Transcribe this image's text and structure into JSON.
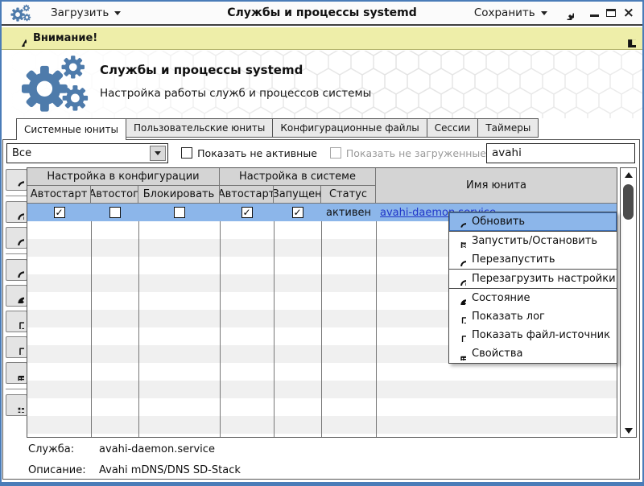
{
  "titlebar": {
    "load_label": "Загрузить",
    "title": "Службы и процессы systemd",
    "save_label": "Сохранить",
    "icons": [
      "gears-logo-icon",
      "gear-icon",
      "minimize-icon",
      "maximize-icon",
      "close-icon"
    ]
  },
  "warning_bar": {
    "text": "Внимание!",
    "icons": [
      "warning-triangle-icon",
      "save-floppy-icon"
    ]
  },
  "header": {
    "title": "Службы и процессы systemd",
    "subtitle": "Настройка работы служб и процессов системы"
  },
  "tabs": [
    {
      "label": "Системные юниты",
      "active": true
    },
    {
      "label": "Пользовательские юниты",
      "active": false
    },
    {
      "label": "Конфигурационные файлы",
      "active": false
    },
    {
      "label": "Сессии",
      "active": false
    },
    {
      "label": "Таймеры",
      "active": false
    }
  ],
  "filters": {
    "unit_type_value": "Все",
    "show_inactive_label": "Показать не активные",
    "show_inactive_checked": false,
    "show_unloaded_label": "Показать не загруженные",
    "show_unloaded_checked": false,
    "show_unloaded_enabled": false,
    "search_value": "avahi"
  },
  "table": {
    "group_headers": [
      "Настройка в конфигурации",
      "Настройка в системе"
    ],
    "columns": [
      "Автостарт",
      "Автостоп",
      "Блокировать",
      "Автостарт",
      "Запущен",
      "Статус",
      "Имя юнита"
    ],
    "selected_row": {
      "config_autostart": true,
      "config_autostop": false,
      "config_block": false,
      "system_autostart": true,
      "system_running": true,
      "status": "активен",
      "unit_name": "avahi-daemon.service"
    }
  },
  "sidebar": {
    "buttons": [
      "refresh-icon",
      "reload-settings-icon",
      "clockwise-arrow-icon",
      "counterclockwise-arrow-icon",
      "info-icon",
      "log-file-icon",
      "source-file-icon",
      "properties-icon",
      "list-icon"
    ]
  },
  "context_menu": {
    "items": [
      {
        "label": "Обновить",
        "icon": "refresh-icon",
        "highlighted": true
      },
      {
        "label": "Запустить/Остановить",
        "icon": "flag-icon"
      },
      {
        "label": "Перезапустить",
        "icon": "counterclockwise-arrow-icon"
      },
      {
        "label": "Перезагрузить настройки",
        "icon": "reload-settings-icon"
      },
      {
        "label": "Состояние",
        "icon": "info-icon"
      },
      {
        "label": "Показать лог",
        "icon": "log-file-icon"
      },
      {
        "label": "Показать файл-источник",
        "icon": "source-file-icon"
      },
      {
        "label": "Свойства",
        "icon": "properties-icon"
      }
    ]
  },
  "status_panel": {
    "service_label": "Служба:",
    "service_value": "avahi-daemon.service",
    "description_label": "Описание:",
    "description_value": "Avahi mDNS/DNS SD-Stack"
  },
  "colors": {
    "window_frame": "#4a7cb8",
    "selection": "#8cb6ea",
    "warning_bg": "#eeeea9",
    "link": "#2136c9",
    "logo_blue": "#4e7bab",
    "table_header": "#d4d4d4"
  }
}
